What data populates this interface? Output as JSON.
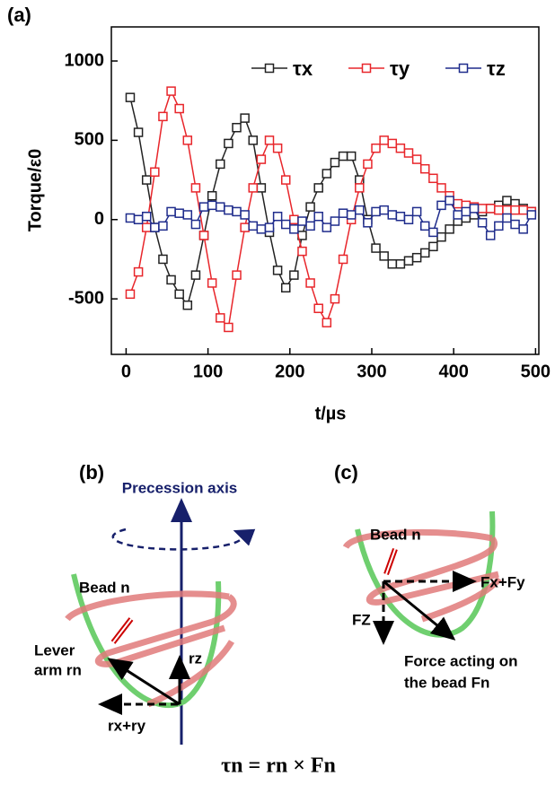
{
  "chart_data": {
    "type": "line",
    "panel_label": "(a)",
    "x_label": "t/µs",
    "y_label": "Torque/ε0",
    "x": [
      5,
      15,
      25,
      35,
      45,
      55,
      65,
      75,
      85,
      95,
      105,
      115,
      125,
      135,
      145,
      155,
      165,
      175,
      185,
      195,
      205,
      215,
      225,
      235,
      245,
      255,
      265,
      275,
      285,
      295,
      305,
      315,
      325,
      335,
      345,
      355,
      365,
      375,
      385,
      395,
      405,
      415,
      425,
      435,
      445,
      455,
      465,
      475,
      485,
      495
    ],
    "series": [
      {
        "name": "τx",
        "color": "#222222",
        "values": [
          770,
          550,
          250,
          -50,
          -250,
          -380,
          -470,
          -540,
          -350,
          -100,
          150,
          350,
          480,
          580,
          640,
          500,
          200,
          -80,
          -320,
          -430,
          -350,
          -100,
          80,
          200,
          290,
          360,
          400,
          400,
          250,
          0,
          -180,
          -230,
          -280,
          -280,
          -260,
          -240,
          -210,
          -170,
          -110,
          -60,
          -10,
          10,
          30,
          50,
          70,
          90,
          120,
          100,
          70,
          50
        ]
      },
      {
        "name": "τy",
        "color": "#e8262b",
        "values": [
          -470,
          -330,
          -50,
          300,
          650,
          810,
          700,
          500,
          200,
          -100,
          -400,
          -620,
          -680,
          -350,
          -50,
          200,
          380,
          500,
          450,
          250,
          0,
          -200,
          -400,
          -560,
          -650,
          -500,
          -250,
          0,
          200,
          350,
          450,
          500,
          480,
          450,
          420,
          380,
          320,
          260,
          200,
          150,
          100,
          90,
          80,
          70,
          70,
          60,
          60,
          60,
          60,
          50
        ]
      },
      {
        "name": "τz",
        "color": "#1f2c8c",
        "values": [
          10,
          0,
          20,
          -50,
          -40,
          50,
          40,
          30,
          -30,
          80,
          90,
          80,
          60,
          50,
          30,
          -40,
          -60,
          -50,
          20,
          -30,
          -60,
          -10,
          -40,
          20,
          -50,
          -10,
          40,
          30,
          60,
          -20,
          50,
          60,
          30,
          20,
          0,
          50,
          -40,
          -80,
          90,
          120,
          30,
          50,
          70,
          -20,
          -100,
          -40,
          10,
          -30,
          -60,
          30
        ]
      }
    ],
    "xlim": [
      -18,
      504
    ],
    "xticks": [
      0,
      100,
      200,
      300,
      400,
      500
    ],
    "ylim": [
      -850,
      1215
    ],
    "yticks": [
      -500,
      0,
      500,
      1000
    ],
    "legend": "top-right",
    "grid": false
  },
  "diagram_b": {
    "panel_label": "(b)",
    "axis_label": "Precession axis",
    "bead": "Bead n",
    "lever_1": "Lever",
    "lever_2": "arm rn",
    "rz": "rz",
    "rxy": "rx+ry"
  },
  "diagram_c": {
    "panel_label": "(c)",
    "bead": "Bead n",
    "fxy": "Fx+Fy",
    "fz": "FZ",
    "force_1": "Force acting on",
    "force_2": "the bead Fn"
  },
  "equation": "τn = rn × Fn"
}
